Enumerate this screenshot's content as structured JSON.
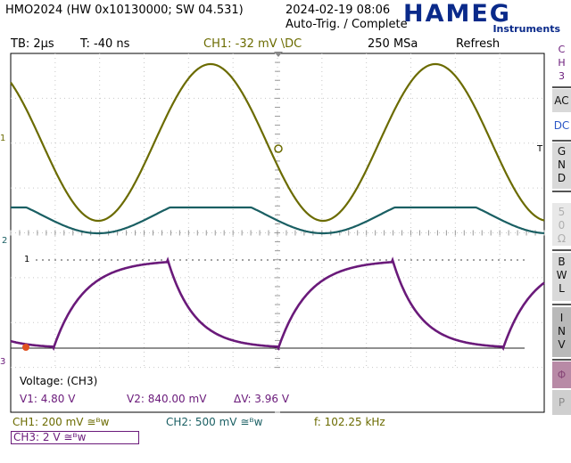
{
  "header": {
    "device": "HMO2024 (HW 0x10130000; SW 04.531)",
    "datetime": "2024-02-19 08:06",
    "status": "Auto-Trig. / Complete",
    "brand": "HAMEG",
    "brand_sub": "Instruments"
  },
  "topbar": {
    "timebase": "TB: 2µs",
    "trigger_time": "T: -40 ns",
    "trigger_source": "CH1: -32 mV \\DC",
    "sample_rate": "250 MSa",
    "mode": "Refresh"
  },
  "sidebar": {
    "channel": [
      "C",
      "H",
      "3"
    ],
    "ac": "AC",
    "dc": "DC",
    "gnd": [
      "G",
      "N",
      "D"
    ],
    "ohm": [
      "5",
      "0",
      "Ω"
    ],
    "bwl": [
      "B",
      "W",
      "L"
    ],
    "inv": [
      "I",
      "N",
      "V"
    ],
    "extra": [
      "Φ",
      "P"
    ]
  },
  "markers": {
    "ch1": "1",
    "ch2": "2",
    "ch3": "3",
    "ref1": "1",
    "trigger": "T"
  },
  "measurement": {
    "title": "Voltage: (CH3)",
    "v1": "V1: 4.80 V",
    "v2": "V2: 840.00 mV",
    "dv": "ΔV: 3.96 V"
  },
  "footer": {
    "ch1": "CH1: 200 mV ≅ᴮw",
    "ch2": "CH2: 500 mV ≅ᴮw",
    "freq": "f: 102.25 kHz",
    "ch3": "CH3: 2 V ≅ᴮw"
  },
  "colors": {
    "ch1": "#6b6b00",
    "ch2": "#1a5f63",
    "ch3": "#6a1a7a",
    "grid": "#c8c8c8"
  }
}
